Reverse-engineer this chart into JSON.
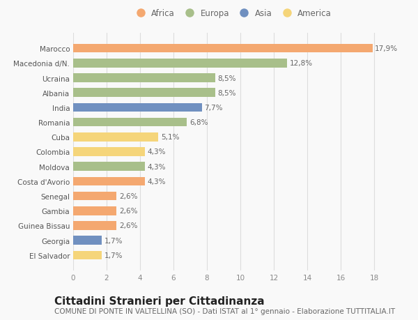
{
  "categories": [
    "El Salvador",
    "Georgia",
    "Guinea Bissau",
    "Gambia",
    "Senegal",
    "Costa d'Avorio",
    "Moldova",
    "Colombia",
    "Cuba",
    "Romania",
    "India",
    "Albania",
    "Ucraina",
    "Macedonia d/N.",
    "Marocco"
  ],
  "values": [
    1.7,
    1.7,
    2.6,
    2.6,
    2.6,
    4.3,
    4.3,
    4.3,
    5.1,
    6.8,
    7.7,
    8.5,
    8.5,
    12.8,
    17.9
  ],
  "continents": [
    "America",
    "Asia",
    "Africa",
    "Africa",
    "Africa",
    "Africa",
    "Europa",
    "America",
    "America",
    "Europa",
    "Asia",
    "Europa",
    "Europa",
    "Europa",
    "Africa"
  ],
  "labels": [
    "1,7%",
    "1,7%",
    "2,6%",
    "2,6%",
    "2,6%",
    "4,3%",
    "4,3%",
    "4,3%",
    "5,1%",
    "6,8%",
    "7,7%",
    "8,5%",
    "8,5%",
    "12,8%",
    "17,9%"
  ],
  "colors": {
    "Africa": "#F4A870",
    "Europa": "#A8BF8A",
    "Asia": "#7090C0",
    "America": "#F5D57A"
  },
  "legend_order": [
    "Africa",
    "Europa",
    "Asia",
    "America"
  ],
  "legend_colors": [
    "#F4A870",
    "#A8BF8A",
    "#7090C0",
    "#F5D57A"
  ],
  "xlim": [
    0,
    19
  ],
  "xticks": [
    0,
    2,
    4,
    6,
    8,
    10,
    12,
    14,
    16,
    18
  ],
  "title": "Cittadini Stranieri per Cittadinanza",
  "subtitle": "COMUNE DI PONTE IN VALTELLINA (SO) - Dati ISTAT al 1° gennaio - Elaborazione TUTTITALIA.IT",
  "background_color": "#f9f9f9",
  "grid_color": "#dddddd",
  "bar_height": 0.6,
  "title_fontsize": 11,
  "subtitle_fontsize": 7.5,
  "label_fontsize": 7.5,
  "tick_fontsize": 7.5,
  "legend_fontsize": 8.5
}
